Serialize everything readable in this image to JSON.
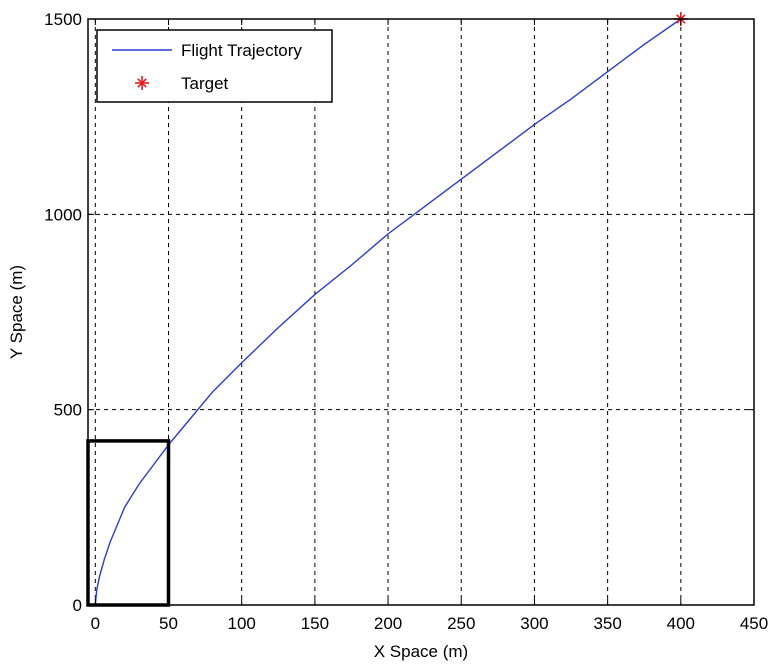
{
  "chart_data": {
    "type": "line",
    "xlabel": "X Space (m)",
    "ylabel": "Y Space (m)",
    "xlim": [
      -5,
      450
    ],
    "ylim": [
      0,
      1500
    ],
    "x_ticks": [
      0,
      50,
      100,
      150,
      200,
      250,
      300,
      350,
      400,
      450
    ],
    "y_ticks": [
      0,
      500,
      1000,
      1500
    ],
    "grid": true,
    "grid_style": "dashed",
    "legend_position": "top-left",
    "series": [
      {
        "name": "Flight Trajectory",
        "color": "#2b3cd4",
        "points": [
          [
            0,
            0
          ],
          [
            1,
            40
          ],
          [
            3,
            75
          ],
          [
            6,
            115
          ],
          [
            10,
            160
          ],
          [
            15,
            205
          ],
          [
            20,
            250
          ],
          [
            30,
            310
          ],
          [
            40,
            360
          ],
          [
            50,
            410
          ],
          [
            60,
            455
          ],
          [
            80,
            545
          ],
          [
            100,
            620
          ],
          [
            125,
            710
          ],
          [
            150,
            795
          ],
          [
            175,
            870
          ],
          [
            200,
            950
          ],
          [
            225,
            1020
          ],
          [
            250,
            1090
          ],
          [
            275,
            1160
          ],
          [
            300,
            1230
          ],
          [
            325,
            1295
          ],
          [
            350,
            1365
          ],
          [
            375,
            1435
          ],
          [
            400,
            1500
          ]
        ]
      },
      {
        "name": "Target",
        "color": "#e02020",
        "marker": "star",
        "points": [
          [
            400,
            1500
          ]
        ]
      }
    ],
    "annotations": [
      {
        "type": "rectangle",
        "x0": -5,
        "x1": 50,
        "y0": 0,
        "y1": 420,
        "color": "#000000"
      }
    ]
  }
}
